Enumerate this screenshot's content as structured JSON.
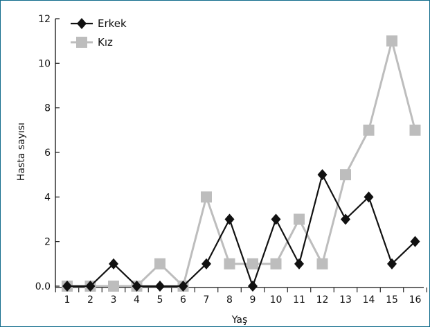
{
  "chart_data": {
    "type": "line",
    "title": "",
    "xlabel": "Yaş",
    "ylabel": "Hasta sayısı",
    "x": [
      "1",
      "2",
      "3",
      "4",
      "5",
      "6",
      "7",
      "8",
      "9",
      "10",
      "11",
      "12",
      "13",
      "14",
      "15",
      "16"
    ],
    "ylim": [
      0,
      12
    ],
    "yticks": [
      "0.0",
      "2",
      "4",
      "6",
      "8",
      "10",
      "12"
    ],
    "grid": false,
    "legend_position": "top-left",
    "series": [
      {
        "name": "Erkek",
        "marker": "diamond",
        "color": "#111111",
        "values": [
          0,
          0,
          1,
          0,
          0,
          0,
          1,
          3,
          0,
          3,
          1,
          5,
          3,
          4,
          1,
          2
        ]
      },
      {
        "name": "Kız",
        "marker": "square",
        "color": "#bdbdbd",
        "values": [
          0,
          0,
          0,
          0,
          1,
          0,
          4,
          1,
          1,
          1,
          3,
          1,
          5,
          7,
          11,
          7
        ]
      }
    ]
  }
}
